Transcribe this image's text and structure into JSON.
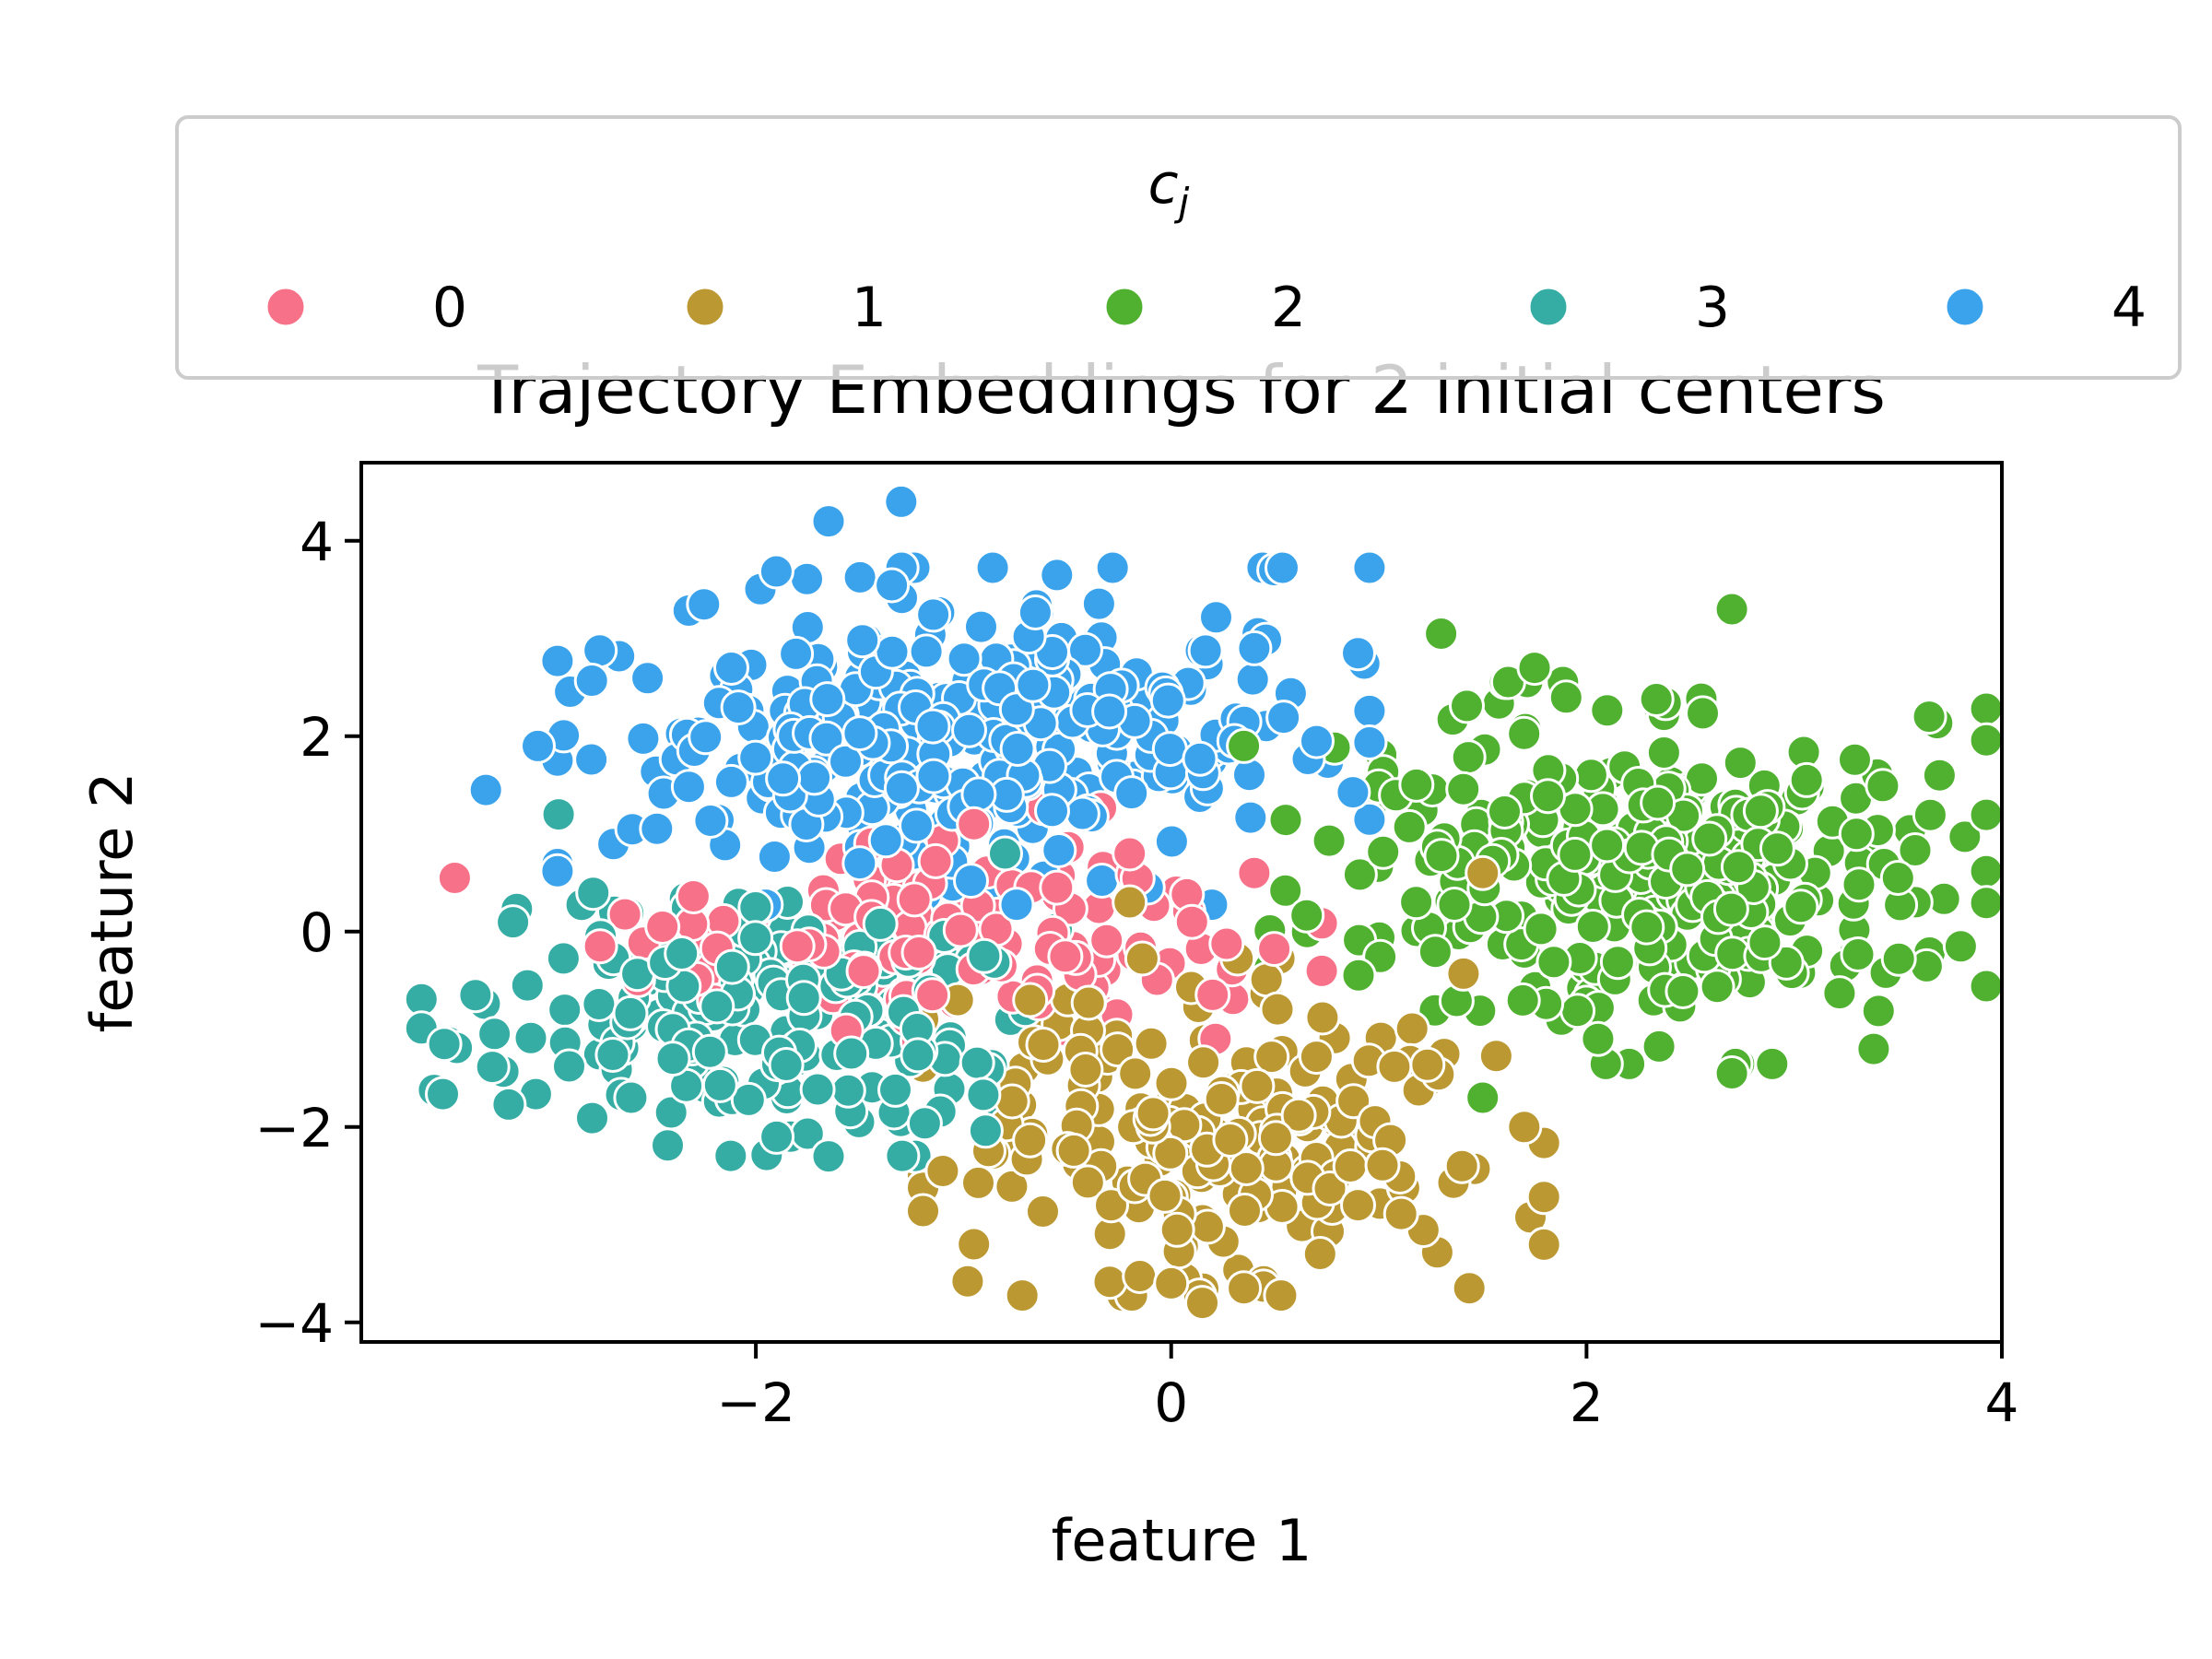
{
  "chart_data": {
    "type": "scatter",
    "title": "Trajectory Embeddings for 2 initial centers",
    "xlabel": "feature 1",
    "ylabel": "feature 2",
    "xlim": [
      -3.9,
      4.0
    ],
    "ylim": [
      -4.2,
      4.8
    ],
    "xticks": [
      -2,
      0,
      2,
      4
    ],
    "yticks": [
      -4,
      -2,
      0,
      2,
      4
    ],
    "xtick_labels": [
      "−2",
      "0",
      "2",
      "4"
    ],
    "ytick_labels": [
      "−4",
      "−2",
      "0",
      "2",
      "4"
    ],
    "grid": false,
    "legend": {
      "title_base": "c",
      "title_sub": "j",
      "placement": "top, above plot"
    },
    "series": [
      {
        "name": "0",
        "color": "#f77189",
        "cluster": {
          "cx": -1.0,
          "cy": 0.0,
          "sx": 0.75,
          "sy": 0.55,
          "count": 130
        },
        "points": [
          [
            -3.45,
            0.55
          ],
          [
            -0.95,
            1.1
          ],
          [
            -0.2,
            0.8
          ],
          [
            0.4,
            0.6
          ],
          [
            -1.15,
            -0.65
          ],
          [
            -2.45,
            0.05
          ],
          [
            -2.75,
            -0.15
          ],
          [
            -0.55,
            0.45
          ],
          [
            -1.8,
            -0.15
          ],
          [
            0.1,
            0.1
          ]
        ]
      },
      {
        "name": "1",
        "color": "#bb9832",
        "cluster": {
          "cx": 0.3,
          "cy": -2.0,
          "sx": 0.65,
          "sy": 0.75,
          "count": 220
        },
        "points": [
          [
            0.15,
            -3.8
          ],
          [
            0.35,
            -3.65
          ],
          [
            -0.95,
            -3.2
          ],
          [
            -1.1,
            -2.45
          ],
          [
            -0.2,
            0.3
          ],
          [
            1.5,
            0.6
          ],
          [
            1.7,
            -2.0
          ],
          [
            1.4,
            -2.4
          ],
          [
            0.0,
            -3.6
          ],
          [
            0.9,
            -2.8
          ]
        ]
      },
      {
        "name": "2",
        "color": "#50b131",
        "cluster": {
          "cx": 2.2,
          "cy": 0.6,
          "sx": 0.75,
          "sy": 0.85,
          "count": 330
        },
        "points": [
          [
            2.7,
            3.3
          ],
          [
            3.65,
            2.2
          ],
          [
            3.7,
            1.6
          ],
          [
            1.3,
            3.05
          ],
          [
            3.5,
            0.55
          ],
          [
            0.35,
            1.9
          ],
          [
            2.7,
            -1.45
          ],
          [
            1.75,
            2.7
          ],
          [
            3.3,
            1.0
          ],
          [
            1.5,
            -1.7
          ]
        ]
      },
      {
        "name": "3",
        "color": "#36ada4",
        "cluster": {
          "cx": -2.0,
          "cy": -0.8,
          "sx": 0.7,
          "sy": 0.65,
          "count": 220
        },
        "points": [
          [
            -3.5,
            -1.15
          ],
          [
            -3.35,
            -0.65
          ],
          [
            -2.6,
            -1.7
          ],
          [
            -1.65,
            -2.3
          ],
          [
            -2.95,
            1.2
          ],
          [
            -0.8,
            0.8
          ],
          [
            -3.1,
            -0.55
          ],
          [
            -1.9,
            -2.1
          ],
          [
            -2.4,
            -1.3
          ],
          [
            -0.9,
            -0.25
          ]
        ]
      },
      {
        "name": "4",
        "color": "#3ba3ec",
        "cluster": {
          "cx": -1.0,
          "cy": 2.0,
          "sx": 0.85,
          "sy": 0.75,
          "count": 330
        },
        "points": [
          [
            -1.3,
            4.4
          ],
          [
            -1.65,
            4.2
          ],
          [
            -3.3,
            1.45
          ],
          [
            -3.05,
            1.9
          ],
          [
            0.9,
            2.85
          ],
          [
            0.7,
            1.95
          ],
          [
            -2.25,
            3.35
          ],
          [
            -0.55,
            3.65
          ],
          [
            -1.5,
            0.7
          ],
          [
            0.4,
            2.9
          ]
        ]
      }
    ]
  }
}
